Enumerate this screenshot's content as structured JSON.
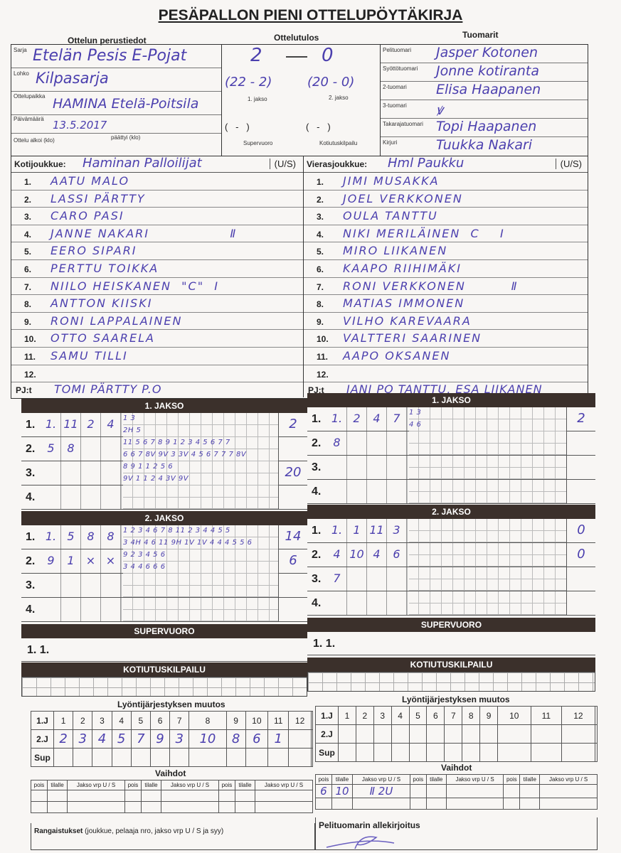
{
  "title": "PESÄPALLON PIENI OTTELUPÖYTÄKIRJA",
  "headers": {
    "basic": "Ottelun perustiedot",
    "result": "Ottelutulos",
    "referees": "Tuomarit"
  },
  "basic": {
    "sarja_label": "Sarja",
    "sarja": "Etelän Pesis E-Pojat",
    "lohko_label": "Lohko",
    "lohko": "Kilpasarja",
    "paikka_label": "Ottelupaikka",
    "paikka": "HAMINA Etelä-Poitsila",
    "pvm_label": "Päivämäärä",
    "pvm": "13.5.2017",
    "alkoi_label": "Ottelu alkoi (klo)",
    "paattyi_label": "päättyi (klo)"
  },
  "result": {
    "home": "2",
    "away": "0",
    "p1": "(22 - 2)",
    "p2": "(20 - 0)",
    "p1_label": "1. jakso",
    "p2_label": "2. jakso",
    "sv": "(   -   )",
    "kk": "(   -   )",
    "sv_label": "Supervuoro",
    "kk_label": "Kotiutuskilpailu"
  },
  "referees": [
    {
      "label": "Pelituomari",
      "name": "Jasper Kotonen"
    },
    {
      "label": "Syöttötuomari",
      "name": "Jonne kotiranta"
    },
    {
      "label": "2-tuomari",
      "name": "Elisa Haapanen"
    },
    {
      "label": "3-tuomari",
      "name": "ꝟ"
    },
    {
      "label": "Takarajatuomari",
      "name": "Topi Haapanen"
    },
    {
      "label": "Kirjuri",
      "name": "Tuukka Nakari"
    }
  ],
  "home": {
    "label": "Kotijoukkue:",
    "name": "Haminan Palloilijat",
    "us": "(U/S)",
    "players": [
      "AATU MALO",
      "LASSI PÄRTTY",
      "CARO PASI",
      "JANNE NAKARI                Ⅱ",
      "EERO SIPARI",
      "PERTTU TOIKKA",
      "NIILO HEISKANEN  \"C\"  Ⅰ",
      "ANTTON KIISKI",
      "RONI LAPPALAINEN",
      "OTTO SAARELA",
      "SAMU TILLI",
      ""
    ],
    "pj_label": "PJ:t",
    "pj": "TOMI PÄRTTY P.O"
  },
  "away": {
    "label": "Vierasjoukkue:",
    "name": "Hml Paukku",
    "us": "(U/S)",
    "players": [
      "JIMI MUSAKKA",
      "JOEL VERKKONEN",
      "OULA TANTTU",
      "NIKI MERILÄINEN  C    Ⅰ",
      "MIRO LIIKANEN",
      "KAAPO RIIHIMÄKI",
      "RONI VERKKONEN         Ⅱ",
      "MATIAS IMMONEN",
      "VILHO KAREVAARA",
      "VALTTERI SAARINEN",
      "AAPO OKSANEN",
      ""
    ],
    "pj_label": "PJ:t",
    "pj": "JANI PO TANTTU, ESA LIIKANEN"
  },
  "periods": {
    "p1": "1. JAKSO",
    "p2": "2. JAKSO",
    "sv": "SUPERVUORO",
    "kk": "KOTIUTUSKILPAILU"
  },
  "innings": {
    "home_p1": [
      {
        "n": "1.",
        "c": [
          "1.",
          "11",
          "2",
          "4"
        ],
        "a": "1 3",
        "b": "2H 5",
        "t": "2"
      },
      {
        "n": "2.",
        "c": [
          "5",
          "8",
          "",
          ""
        ],
        "a": "11 5 6 7 8 9 1 2 3 4 5 6 7 7",
        "b": "6 6 7 8V 9V 3 3V 4 5 6 7 7 7 8V",
        "t": ""
      },
      {
        "n": "3.",
        "c": [
          "",
          "",
          "",
          ""
        ],
        "a": "8 9 1 1 2 5 6",
        "b": "9V 1 1 2 4 3V 9V",
        "t": "20"
      },
      {
        "n": "4.",
        "c": [
          "",
          "",
          "",
          ""
        ],
        "a": "",
        "b": "",
        "t": ""
      }
    ],
    "away_p1": [
      {
        "n": "1.",
        "c": [
          "1.",
          "2",
          "4",
          "7"
        ],
        "a": "1 3",
        "b": "4 6",
        "t": "2"
      },
      {
        "n": "2.",
        "c": [
          "8",
          "",
          "",
          ""
        ],
        "a": "",
        "b": "",
        "t": ""
      },
      {
        "n": "3.",
        "c": [
          "",
          "",
          "",
          ""
        ],
        "a": "",
        "b": "",
        "t": ""
      },
      {
        "n": "4.",
        "c": [
          "",
          "",
          "",
          ""
        ],
        "a": "",
        "b": "",
        "t": ""
      }
    ],
    "home_p2": [
      {
        "n": "1.",
        "c": [
          "1.",
          "5",
          "8",
          "8"
        ],
        "a": "1 2 3 4 6 7 8 11 2 3 4 4 5 5",
        "b": "3 4H 4 6 11 9H 1V 1V 4 4 4 5 5 6",
        "t": "14"
      },
      {
        "n": "2.",
        "c": [
          "9",
          "1",
          "×",
          "×"
        ],
        "a": "9 2 3 4 5 6",
        "b": "3 4 4 6 6 6",
        "t": "6"
      },
      {
        "n": "3.",
        "c": [
          "",
          "",
          "",
          ""
        ],
        "a": "",
        "b": "",
        "t": ""
      },
      {
        "n": "4.",
        "c": [
          "",
          "",
          "",
          ""
        ],
        "a": "",
        "b": "",
        "t": ""
      }
    ],
    "away_p2": [
      {
        "n": "1.",
        "c": [
          "1.",
          "1",
          "11",
          "3"
        ],
        "a": "",
        "b": "",
        "t": "0"
      },
      {
        "n": "2.",
        "c": [
          "4",
          "10",
          "4",
          "6"
        ],
        "a": "",
        "b": "",
        "t": "0"
      },
      {
        "n": "3.",
        "c": [
          "7",
          "",
          "",
          ""
        ],
        "a": "",
        "b": "",
        "t": ""
      },
      {
        "n": "4.",
        "c": [
          "",
          "",
          "",
          ""
        ],
        "a": "",
        "b": "",
        "t": ""
      }
    ]
  },
  "sv_row": "1. 1.",
  "order": {
    "title": "Lyöntijärjestyksen muutos",
    "rows": [
      "1.J",
      "2.J",
      "Sup"
    ],
    "cols": [
      "1",
      "2",
      "3",
      "4",
      "5",
      "6",
      "7",
      "8",
      "9",
      "10",
      "11",
      "12"
    ],
    "home_2j": [
      "2",
      "3",
      "4",
      "5",
      "7",
      "9",
      "3",
      "10",
      "8",
      "6",
      "1",
      ""
    ]
  },
  "subs": {
    "title": "Vaihdot",
    "cols": [
      "pois",
      "tilalle",
      "Jakso vrp U / S"
    ],
    "away_entry": [
      "6",
      "10",
      "Ⅱ 2U"
    ]
  },
  "penalties": {
    "label": "Rangaistukset",
    "note": "(joukkue, pelaaja nro, jakso vrp U / S ja syy)"
  },
  "signature": {
    "label": "Pelituomarin allekirjoitus"
  }
}
